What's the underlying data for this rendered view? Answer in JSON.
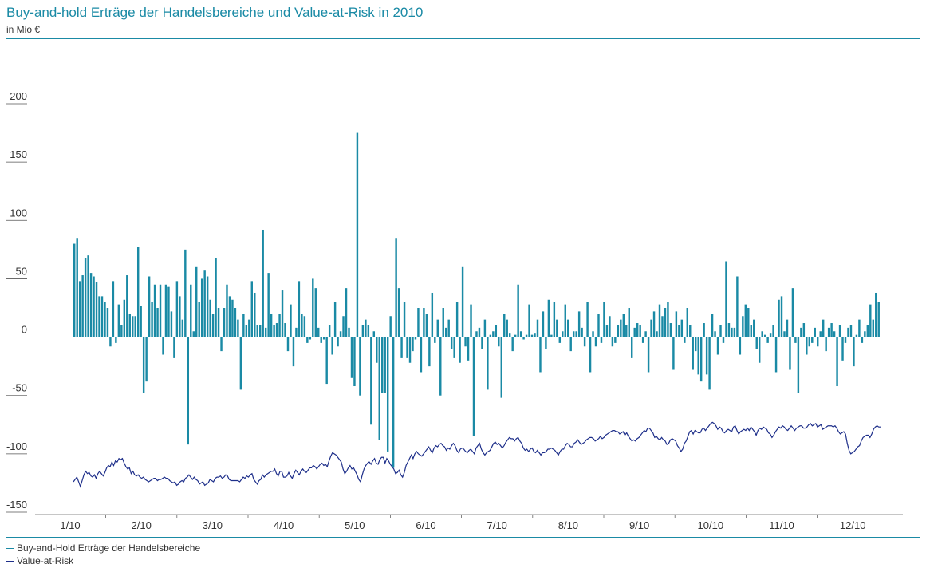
{
  "header": {
    "title": "Buy-and-hold Erträge der Handelsbereiche und Value-at-Risk in 2010",
    "subtitle": "in Mio €"
  },
  "legend": {
    "items": [
      {
        "label": "Buy-and-Hold Erträge der Handelsbereiche",
        "color": "#1a8aa5"
      },
      {
        "label": "Value-at-Risk",
        "color": "#1e2f8a"
      }
    ]
  },
  "chart_data": {
    "type": "bar",
    "title": "Buy-and-hold Erträge der Handelsbereiche und Value-at-Risk in 2010",
    "subtitle": "in Mio €",
    "xlabel": "",
    "ylabel": "",
    "ylim": [
      -150,
      200
    ],
    "yticks": [
      200,
      150,
      100,
      50,
      0,
      -50,
      -100,
      -150
    ],
    "xticks": [
      "1/10",
      "2/10",
      "3/10",
      "4/10",
      "5/10",
      "6/10",
      "7/10",
      "8/10",
      "9/10",
      "10/10",
      "11/10",
      "12/10"
    ],
    "grid": false,
    "colors": {
      "bars": "#1a8aa5",
      "line": "#1e2f8a",
      "accent": "#1a8aa5"
    },
    "series": [
      {
        "name": "Buy-and-Hold Erträge der Handelsbereiche",
        "type": "bar",
        "values": [
          80,
          85,
          48,
          53,
          68,
          70,
          55,
          52,
          47,
          35,
          35,
          30,
          25,
          -8,
          48,
          -5,
          28,
          10,
          32,
          53,
          20,
          18,
          18,
          77,
          27,
          -48,
          -38,
          52,
          30,
          45,
          25,
          45,
          -15,
          45,
          43,
          22,
          -18,
          48,
          35,
          15,
          75,
          -92,
          45,
          5,
          60,
          30,
          50,
          57,
          52,
          32,
          20,
          68,
          25,
          -12,
          25,
          45,
          35,
          32,
          25,
          15,
          -45,
          20,
          10,
          15,
          48,
          38,
          10,
          10,
          92,
          8,
          55,
          20,
          10,
          12,
          20,
          40,
          12,
          -12,
          28,
          -25,
          8,
          48,
          20,
          18,
          -5,
          -2,
          50,
          42,
          8,
          -5,
          -2,
          -40,
          10,
          -15,
          30,
          -8,
          5,
          18,
          42,
          8,
          -35,
          -42,
          175,
          -50,
          10,
          15,
          10,
          -75,
          5,
          -22,
          -88,
          -48,
          -48,
          -98,
          18,
          -112,
          85,
          42,
          -18,
          30,
          -18,
          -22,
          -12,
          -2,
          25,
          -30,
          25,
          20,
          -25,
          38,
          -5,
          15,
          -50,
          25,
          8,
          15,
          -10,
          -18,
          30,
          -22,
          60,
          -8,
          -20,
          28,
          -85,
          5,
          8,
          -10,
          15,
          -45,
          2,
          5,
          10,
          -8,
          -52,
          20,
          15,
          3,
          -12,
          2,
          45,
          5,
          -2,
          2,
          28,
          2,
          3,
          15,
          -30,
          22,
          -10,
          32,
          2,
          30,
          15,
          -5,
          5,
          28,
          15,
          -12,
          5,
          5,
          22,
          8,
          -8,
          30,
          -30,
          5,
          -8,
          20,
          -5,
          30,
          10,
          18,
          -8,
          -5,
          10,
          15,
          20,
          10,
          25,
          -18,
          8,
          12,
          10,
          -5,
          5,
          -30,
          15,
          22,
          5,
          28,
          18,
          25,
          30,
          12,
          -28,
          22,
          10,
          15,
          -5,
          25,
          10,
          -28,
          -12,
          -32,
          -38,
          12,
          -32,
          -45,
          20,
          5,
          -15,
          10,
          -5,
          65,
          12,
          8,
          8,
          52,
          -15,
          18,
          28,
          25,
          10,
          15,
          -10,
          -22,
          5,
          2,
          -5,
          3,
          10,
          -30,
          32,
          35,
          5,
          15,
          -28,
          42,
          -5,
          -48,
          8,
          12,
          -15,
          -8,
          -5,
          8,
          -8,
          5,
          15,
          -12,
          8,
          12,
          5,
          -42,
          10,
          -20,
          -5,
          8,
          10,
          -25,
          2,
          15,
          -5,
          5,
          10,
          28,
          15,
          38,
          30
        ]
      },
      {
        "name": "Value-at-Risk",
        "type": "line",
        "values": [
          -124,
          -122,
          -120,
          -124,
          -128,
          -123,
          -118,
          -115,
          -117,
          -116,
          -119,
          -120,
          -118,
          -121,
          -117,
          -115,
          -117,
          -119,
          -116,
          -112,
          -110,
          -111,
          -107,
          -110,
          -106,
          -107,
          -104,
          -105,
          -104,
          -108,
          -111,
          -113,
          -112,
          -117,
          -115,
          -118,
          -119,
          -118,
          -120,
          -121,
          -120,
          -122,
          -123,
          -124,
          -123,
          -122,
          -121,
          -121,
          -123,
          -122,
          -122,
          -121,
          -120,
          -121,
          -121,
          -123,
          -124,
          -125,
          -124,
          -127,
          -126,
          -124,
          -123,
          -124,
          -121,
          -120,
          -118,
          -120,
          -122,
          -120,
          -122,
          -123,
          -126,
          -125,
          -124,
          -127,
          -126,
          -125,
          -122,
          -123,
          -124,
          -121,
          -120,
          -120,
          -119,
          -121,
          -120,
          -118,
          -119,
          -122,
          -123,
          -123,
          -123,
          -123,
          -123,
          -124,
          -122,
          -120,
          -121,
          -119,
          -120,
          -118,
          -117,
          -122,
          -124,
          -126,
          -123,
          -122,
          -118,
          -120,
          -118,
          -117,
          -116,
          -115,
          -115,
          -113,
          -117,
          -119,
          -115,
          -115,
          -120,
          -120,
          -119,
          -116,
          -119,
          -121,
          -117,
          -114,
          -116,
          -118,
          -115,
          -113,
          -115,
          -116,
          -114,
          -112,
          -112,
          -110,
          -111,
          -113,
          -111,
          -109,
          -108,
          -110,
          -109,
          -111,
          -106,
          -102,
          -99,
          -100,
          -101,
          -103,
          -105,
          -107,
          -113,
          -117,
          -115,
          -112,
          -110,
          -113,
          -112,
          -115,
          -118,
          -122,
          -124,
          -118,
          -113,
          -110,
          -108,
          -107,
          -109,
          -106,
          -104,
          -108,
          -109,
          -105,
          -103,
          -103,
          -108,
          -104,
          -106,
          -109,
          -111,
          -113,
          -117,
          -116,
          -114,
          -118,
          -120,
          -116,
          -110,
          -107,
          -104,
          -101,
          -104,
          -100,
          -98,
          -100,
          -101,
          -102,
          -100,
          -98,
          -96,
          -94,
          -97,
          -99,
          -95,
          -93,
          -94,
          -92,
          -91,
          -93,
          -94,
          -97,
          -95,
          -96,
          -93,
          -91,
          -93,
          -97,
          -99,
          -96,
          -95,
          -96,
          -98,
          -99,
          -97,
          -96,
          -98,
          -100,
          -95,
          -93,
          -91,
          -96,
          -99,
          -101,
          -99,
          -98,
          -97,
          -94,
          -91,
          -90,
          -92,
          -91,
          -93,
          -95,
          -93,
          -90,
          -88,
          -86,
          -87,
          -87,
          -89,
          -87,
          -86,
          -89,
          -91,
          -95,
          -97,
          -96,
          -98,
          -96,
          -95,
          -98,
          -99,
          -97,
          -99,
          -101,
          -99,
          -99,
          -98,
          -96,
          -96,
          -95,
          -96,
          -97,
          -99,
          -101,
          -98,
          -96,
          -96,
          -93,
          -91,
          -92,
          -94,
          -94,
          -91,
          -90,
          -88,
          -90,
          -92,
          -91,
          -90,
          -88,
          -87,
          -86,
          -86,
          -87,
          -89,
          -88,
          -87,
          -85,
          -87,
          -86,
          -84,
          -83,
          -82,
          -81,
          -80,
          -80,
          -81,
          -81,
          -83,
          -82,
          -81,
          -84,
          -82,
          -85,
          -87,
          -89,
          -88,
          -89,
          -87,
          -86,
          -84,
          -82,
          -80,
          -81,
          -78,
          -78,
          -80,
          -82,
          -86,
          -85,
          -87,
          -88,
          -86,
          -88,
          -89,
          -92,
          -91,
          -88,
          -87,
          -88,
          -89,
          -93,
          -95,
          -98,
          -96,
          -91,
          -89,
          -85,
          -81,
          -80,
          -83,
          -80,
          -81,
          -82,
          -82,
          -79,
          -78,
          -80,
          -78,
          -76,
          -74,
          -73,
          -74,
          -76,
          -79,
          -77,
          -78,
          -81,
          -82,
          -80,
          -79,
          -80,
          -81,
          -77,
          -76,
          -80,
          -83,
          -81,
          -80,
          -79,
          -80,
          -78,
          -80,
          -77,
          -79,
          -81,
          -84,
          -80,
          -78,
          -79,
          -77,
          -78,
          -79,
          -82,
          -83,
          -86,
          -84,
          -81,
          -79,
          -77,
          -78,
          -76,
          -77,
          -79,
          -80,
          -78,
          -76,
          -78,
          -80,
          -78,
          -77,
          -76,
          -76,
          -78,
          -78,
          -77,
          -75,
          -74,
          -76,
          -75,
          -74,
          -77,
          -76,
          -75,
          -79,
          -78,
          -77,
          -76,
          -76,
          -76,
          -77,
          -76,
          -78,
          -81,
          -83,
          -82,
          -81,
          -83,
          -91,
          -97,
          -100,
          -99,
          -98,
          -96,
          -94,
          -93,
          -89,
          -86,
          -85,
          -84,
          -84,
          -86,
          -83,
          -79,
          -77,
          -76,
          -77,
          -77
        ]
      }
    ]
  }
}
